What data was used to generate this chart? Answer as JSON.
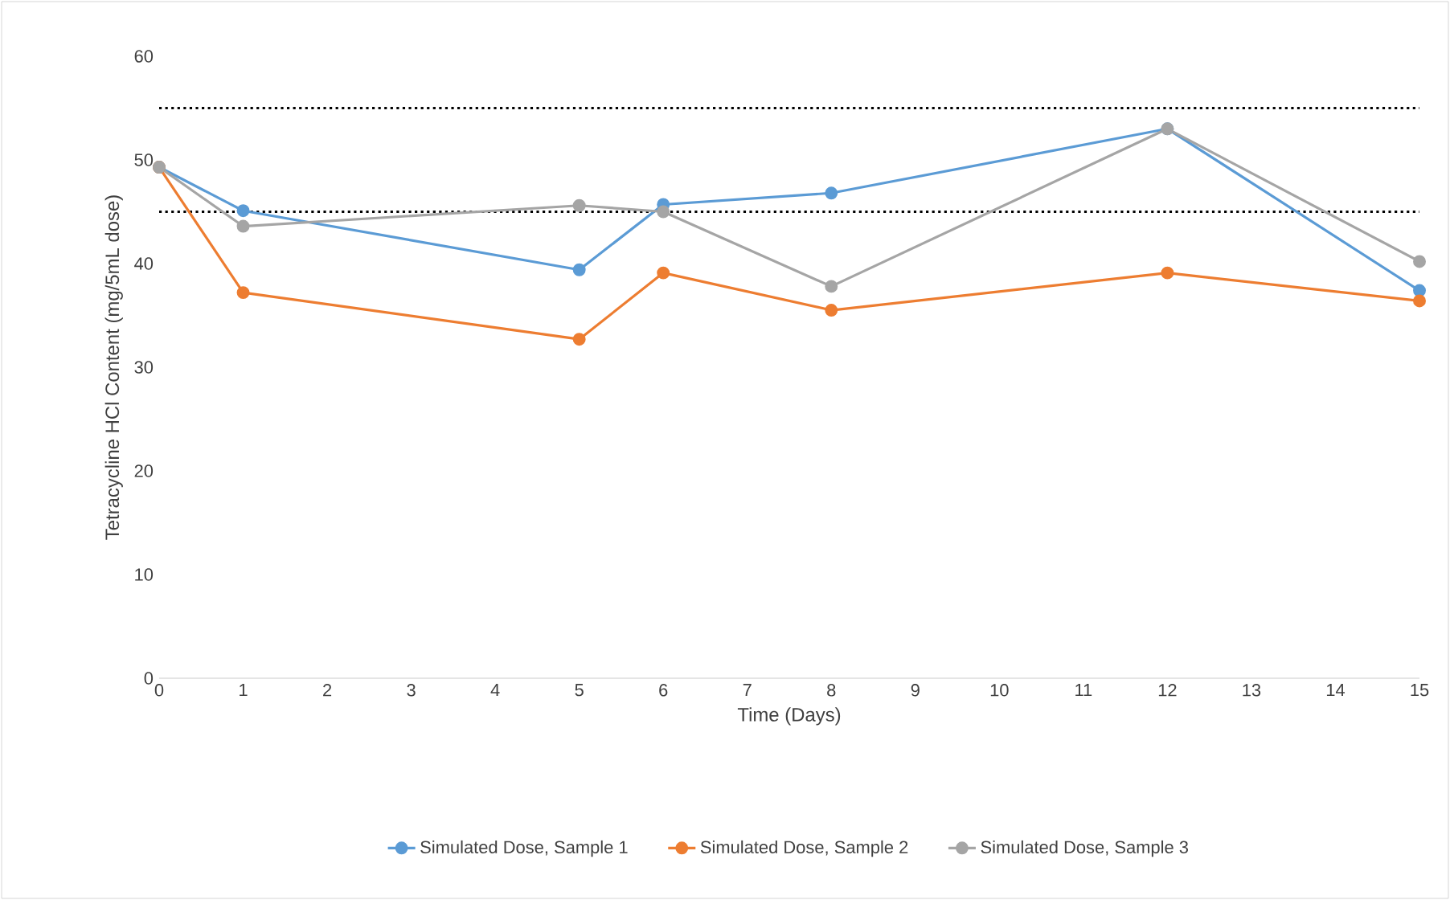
{
  "chart_data": {
    "type": "line",
    "xlabel": "Time (Days)",
    "ylabel": "Tetracycline HCl Content (mg/5mL dose)",
    "xlim": [
      0,
      15
    ],
    "xticks": [
      0,
      1,
      2,
      3,
      4,
      5,
      6,
      7,
      8,
      9,
      10,
      11,
      12,
      13,
      14,
      15
    ],
    "ylim": [
      0,
      60
    ],
    "yticks": [
      0,
      10,
      20,
      30,
      40,
      50,
      60
    ],
    "grid": false,
    "legend": "bottom",
    "marker": "circle",
    "line_style": "solid",
    "ref_lines": [
      {
        "axis": "y",
        "value": 55,
        "color": "#000000",
        "line_style": "dotted"
      },
      {
        "axis": "y",
        "value": 45,
        "color": "#000000",
        "line_style": "dotted"
      }
    ],
    "series": [
      {
        "name": "Simulated Dose, Sample 1",
        "color": "#5b9bd5",
        "x": [
          0,
          1,
          5,
          6,
          8,
          12,
          15
        ],
        "values": [
          49.3,
          45.1,
          39.4,
          45.7,
          46.8,
          53.0,
          37.4
        ]
      },
      {
        "name": "Simulated Dose, Sample 2",
        "color": "#ed7d31",
        "x": [
          0,
          1,
          5,
          6,
          8,
          12,
          15
        ],
        "values": [
          49.3,
          37.2,
          32.7,
          39.1,
          35.5,
          39.1,
          36.4
        ]
      },
      {
        "name": "Simulated Dose, Sample 3",
        "color": "#a5a5a5",
        "x": [
          0,
          1,
          5,
          6,
          8,
          12,
          15
        ],
        "values": [
          49.3,
          43.6,
          45.6,
          45.0,
          37.8,
          53.0,
          40.2
        ]
      }
    ]
  }
}
